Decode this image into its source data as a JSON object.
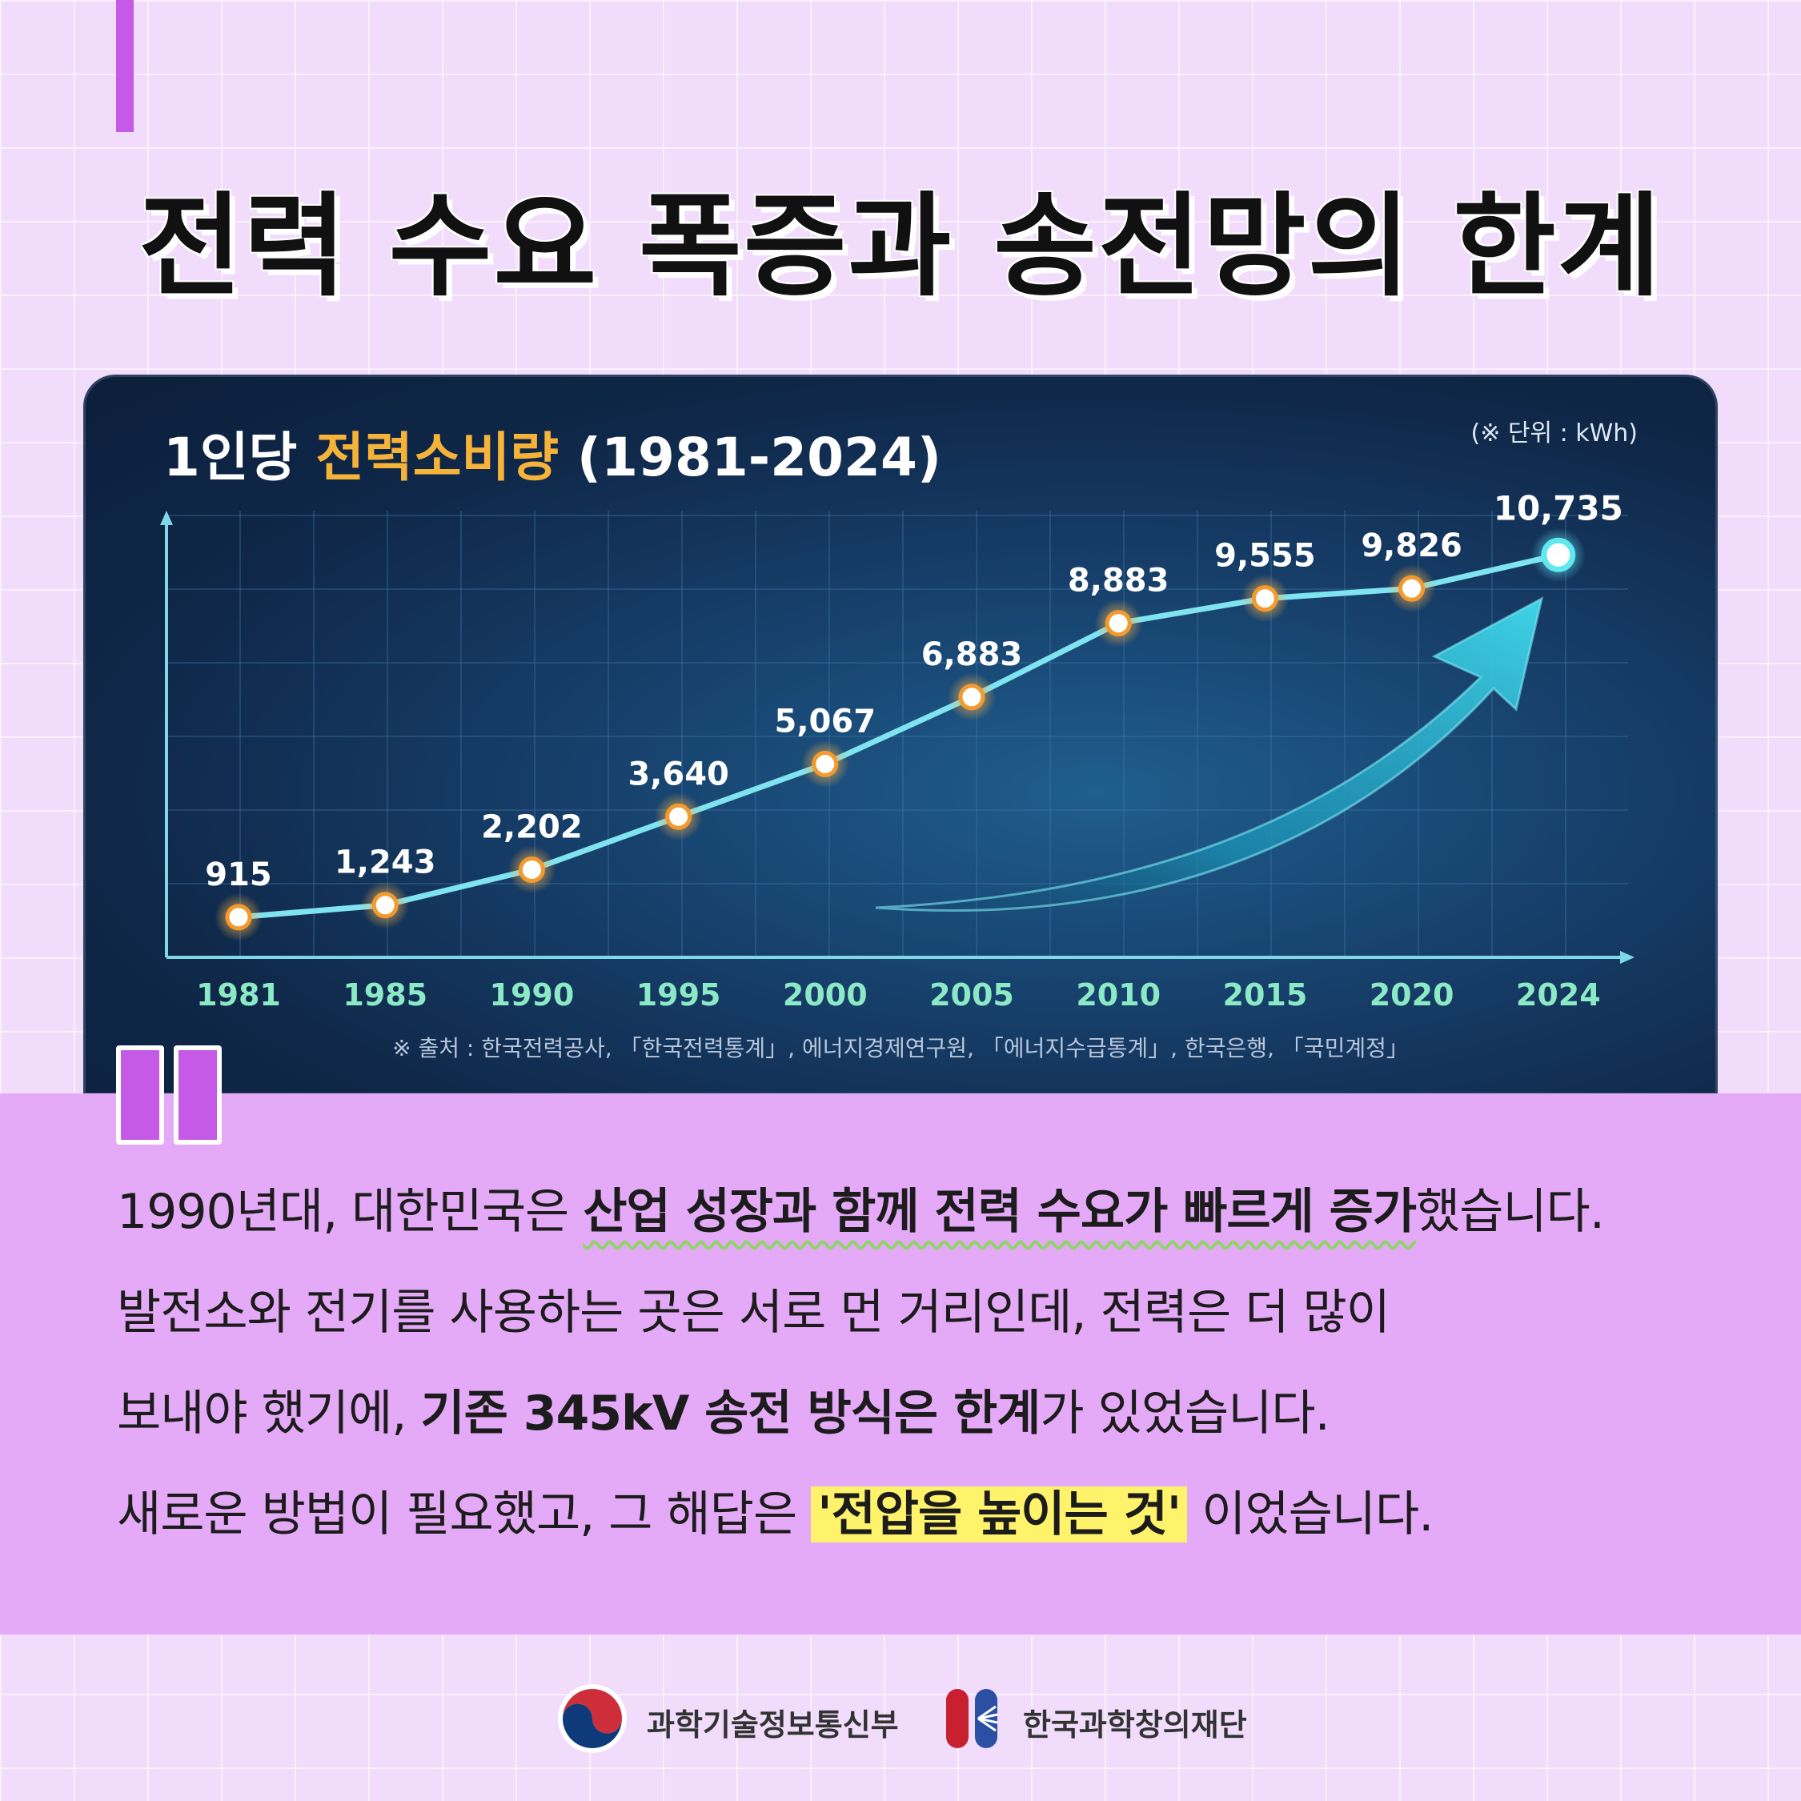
{
  "page": {
    "title": "전력 수요 폭증과 송전망의 한계"
  },
  "chart_data": {
    "type": "line",
    "title_prefix": "1인당 ",
    "title_highlight": "전력소비량",
    "title_suffix": " (1981-2024)",
    "unit_note": "(※ 단위 : kWh)",
    "categories": [
      "1981",
      "1985",
      "1990",
      "1995",
      "2000",
      "2005",
      "2010",
      "2015",
      "2020",
      "2024"
    ],
    "values": [
      915,
      1243,
      2202,
      3640,
      5067,
      6883,
      8883,
      9555,
      9826,
      10735
    ],
    "value_labels": [
      "915",
      "1,243",
      "2,202",
      "3,640",
      "5,067",
      "6,883",
      "8,883",
      "9,555",
      "9,826",
      "10,735"
    ],
    "ylim": [
      0,
      12000
    ],
    "grid": true,
    "source": "※ 출처 : 한국전력공사, 「한국전력통계」, 에너지경제연구원, 「에너지수급통계」, 한국은행, 「국민계정」",
    "colors": {
      "line": "#7fe3f0",
      "point_fill": "#ffffff",
      "point_ring": "#f39a2e",
      "last_point_ring": "#5fe8f0",
      "label": "#ffffff",
      "axis_label": "#8be9c6",
      "arrow": "#29b6d6"
    }
  },
  "body": {
    "line1": {
      "pre": "1990년대, 대한민국은 ",
      "bold": "산업 성장과 함께 전력 수요가 빠르게 증가",
      "post": "했습니다."
    },
    "line2": {
      "text": "발전소와 전기를 사용하는 곳은 서로 먼 거리인데, 전력은 더 많이"
    },
    "line3": {
      "pre": "보내야 했기에, ",
      "bold": "기존 345kV 송전 방식은 한계",
      "post": "가 있었습니다."
    },
    "line4": {
      "pre": "새로운 방법이 필요했고, 그 해답은 ",
      "mark": "'전압을 높이는 것'",
      "post": " 이었습니다."
    }
  },
  "footer": {
    "ministry_label": "과학기술정보통신부",
    "foundation_label": "한국과학창의재단"
  }
}
